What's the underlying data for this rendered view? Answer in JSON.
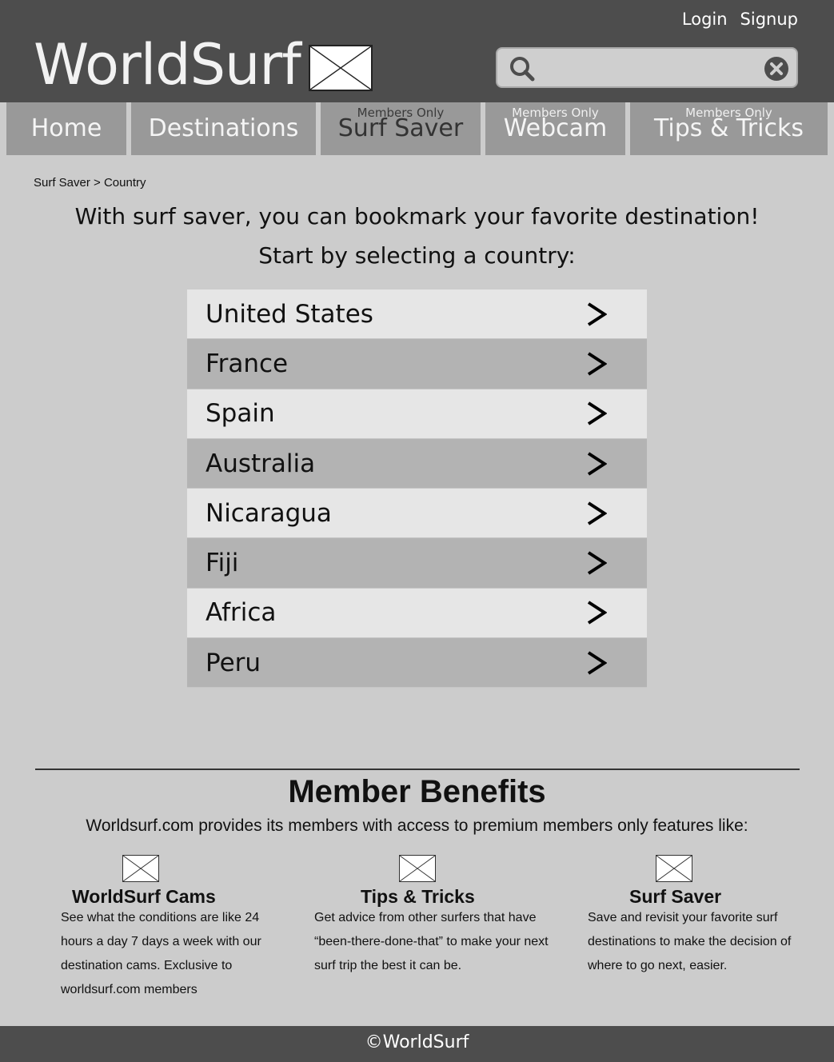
{
  "header": {
    "logo_text": "WorldSurf",
    "login_label": "Login",
    "signup_label": "Signup",
    "search": {
      "value": "",
      "placeholder": ""
    }
  },
  "nav": {
    "tabs": [
      {
        "label": "Home",
        "sublabel": ""
      },
      {
        "label": "Destinations",
        "sublabel": ""
      },
      {
        "label": "Surf Saver",
        "sublabel": "Members Only"
      },
      {
        "label": "Webcam",
        "sublabel": "Members Only"
      },
      {
        "label": "Tips & Tricks",
        "sublabel": "Members Only"
      }
    ]
  },
  "breadcrumb": "Surf Saver > Country",
  "intro": {
    "line1": "With surf saver, you can bookmark your favorite destination!",
    "line2": "Start by selecting a country:"
  },
  "countries": [
    {
      "name": "United States",
      "arrow": ">"
    },
    {
      "name": "France",
      "arrow": ">"
    },
    {
      "name": "Spain",
      "arrow": ">"
    },
    {
      "name": "Australia",
      "arrow": ">"
    },
    {
      "name": "Nicaragua",
      "arrow": ">"
    },
    {
      "name": "Fiji",
      "arrow": ">"
    },
    {
      "name": "Africa",
      "arrow": ">"
    },
    {
      "name": "Peru",
      "arrow": ">"
    }
  ],
  "benefits": {
    "title": "Member Benefits",
    "subtitle": "Worldsurf.com provides its members with access to premium members only features like:",
    "items": [
      {
        "title": "WorldSurf Cams",
        "text": "See what the conditions are like 24 hours a day 7 days a week with our destination cams. Exclusive to worldsurf.com members"
      },
      {
        "title": "Tips & Tricks",
        "text": "Get advice from other surfers that have “been-there-done-that” to make your next surf trip the best it can be."
      },
      {
        "title": "Surf Saver",
        "text": "Save and revisit your favorite surf destinations to make the decision of where to go next, easier."
      }
    ]
  },
  "footer": {
    "text": "©WorldSurf"
  }
}
